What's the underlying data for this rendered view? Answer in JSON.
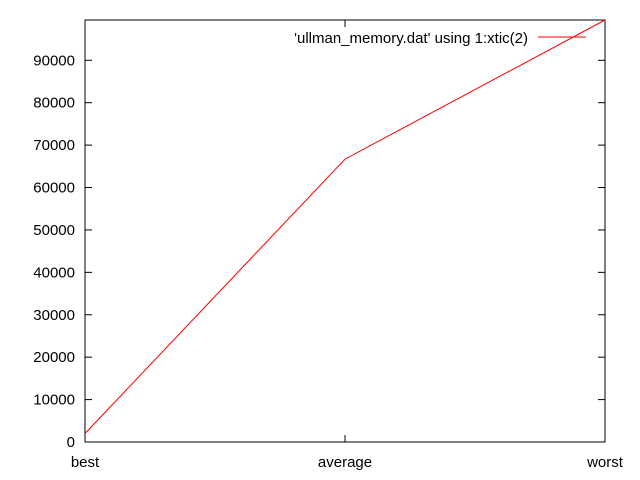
{
  "chart_data": {
    "type": "line",
    "title": "",
    "xlabel": "",
    "ylabel": "",
    "categories": [
      "best",
      "average",
      "worst"
    ],
    "series": [
      {
        "name": "'ullman_memory.dat' using 1:xtic(2)",
        "values": [
          2000,
          66700,
          99500
        ],
        "color": "#ff0000"
      }
    ],
    "ylim": [
      0,
      99500
    ],
    "y_ticks": [
      0,
      10000,
      20000,
      30000,
      40000,
      50000,
      60000,
      70000,
      80000,
      90000
    ],
    "grid": false,
    "legend_position": "top-right"
  }
}
